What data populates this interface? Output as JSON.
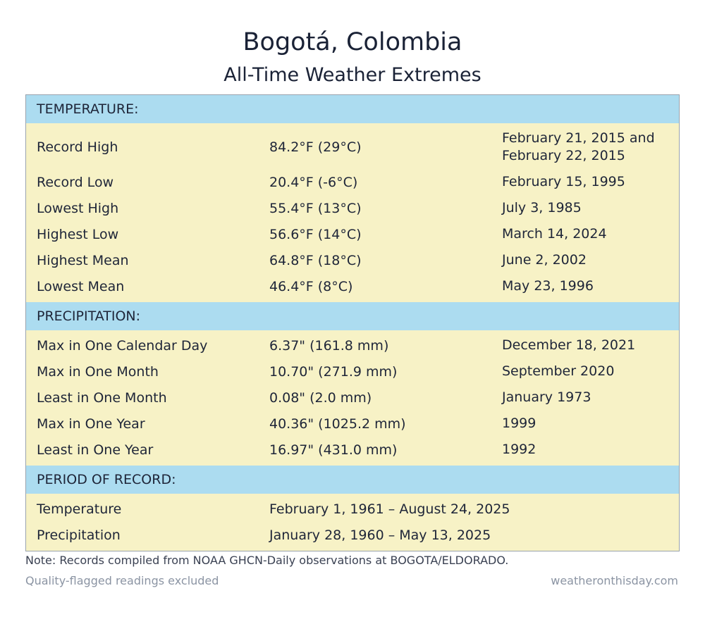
{
  "header": {
    "title": "Bogotá, Colombia",
    "subtitle": "All-Time Weather Extremes"
  },
  "sections": {
    "temperature": {
      "heading": "TEMPERATURE:",
      "rows": [
        {
          "label": "Record High",
          "value": "84.2°F (29°C)",
          "date": "February 21, 2015 and February 22, 2015"
        },
        {
          "label": "Record Low",
          "value": "20.4°F (-6°C)",
          "date": "February 15, 1995"
        },
        {
          "label": "Lowest High",
          "value": "55.4°F (13°C)",
          "date": "July 3, 1985"
        },
        {
          "label": "Highest Low",
          "value": "56.6°F (14°C)",
          "date": "March 14, 2024"
        },
        {
          "label": "Highest Mean",
          "value": "64.8°F (18°C)",
          "date": "June 2, 2002"
        },
        {
          "label": "Lowest Mean",
          "value": "46.4°F (8°C)",
          "date": "May 23, 1996"
        }
      ]
    },
    "precipitation": {
      "heading": "PRECIPITATION:",
      "rows": [
        {
          "label": "Max in One Calendar Day",
          "value": "6.37\" (161.8 mm)",
          "date": "December 18, 2021"
        },
        {
          "label": "Max in One Month",
          "value": "10.70\" (271.9 mm)",
          "date": "September 2020"
        },
        {
          "label": "Least in One Month",
          "value": "0.08\" (2.0 mm)",
          "date": "January 1973"
        },
        {
          "label": "Max in One Year",
          "value": "40.36\" (1025.2 mm)",
          "date": "1999"
        },
        {
          "label": "Least in One Year",
          "value": "16.97\" (431.0 mm)",
          "date": "1992"
        }
      ]
    },
    "period": {
      "heading": "PERIOD OF RECORD:",
      "rows": [
        {
          "label": "Temperature",
          "value": "February 1, 1961 – August 24, 2025"
        },
        {
          "label": "Precipitation",
          "value": "January 28, 1960 – May 13, 2025"
        }
      ]
    }
  },
  "footer": {
    "note": "Note: Records compiled from NOAA GHCN-Daily observations at BOGOTA/ELDORADO.",
    "qualifier": "Quality-flagged readings excluded",
    "source": "weatheronthisday.com"
  },
  "colors": {
    "section_header_bg": "#acdcf0",
    "row_bg": "#f7f2c6",
    "border": "#9aa3ad",
    "muted_text": "#8b94a3"
  }
}
